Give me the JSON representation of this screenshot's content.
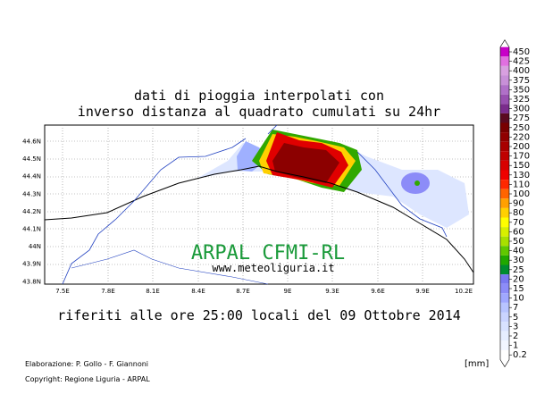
{
  "header": {
    "title_lines": [
      "dati di pioggia interpolati con",
      "inverso distanza al quadrato cumulati su 24hr"
    ]
  },
  "map": {
    "lat_labels": [
      "44.6N",
      "44.5N",
      "44.4N",
      "44.3N",
      "44.2N",
      "44.1N",
      "44N",
      "43.9N",
      "43.8N"
    ],
    "lon_labels": [
      "7.5E",
      "7.8E",
      "8.1E",
      "8.4E",
      "8.7E",
      "9E",
      "9.3E",
      "9.6E",
      "9.9E",
      "10.2E"
    ],
    "watermark": "ARPAL CFMI-RL",
    "website": "www.meteoliguria.it"
  },
  "subtitle": "riferiti alle ore 25:00 locali del 09 Ottobre 2014",
  "credits": [
    "Elaborazione: P. Gollo - F. Giannoni",
    "Copyright: Regione Liguria - ARPAL"
  ],
  "colorbar": {
    "unit": "[mm]",
    "levels": [
      {
        "label": 450,
        "color": "#c800c8"
      },
      {
        "label": 425,
        "color": "#e070e0"
      },
      {
        "label": 400,
        "color": "#d8a0e0"
      },
      {
        "label": 375,
        "color": "#c890d8"
      },
      {
        "label": 350,
        "color": "#b070c8"
      },
      {
        "label": 325,
        "color": "#9850b0"
      },
      {
        "label": 300,
        "color": "#7a2c8c"
      },
      {
        "label": 275,
        "color": "#5a0a20"
      },
      {
        "label": 250,
        "color": "#780000"
      },
      {
        "label": 220,
        "color": "#900000"
      },
      {
        "label": 200,
        "color": "#a80000"
      },
      {
        "label": 170,
        "color": "#c00000"
      },
      {
        "label": 150,
        "color": "#d80000"
      },
      {
        "label": 130,
        "color": "#f00000"
      },
      {
        "label": 110,
        "color": "#ff2800"
      },
      {
        "label": 100,
        "color": "#ff6400"
      },
      {
        "label": 90,
        "color": "#ffa000"
      },
      {
        "label": 80,
        "color": "#ffd000"
      },
      {
        "label": 70,
        "color": "#ffff00"
      },
      {
        "label": 60,
        "color": "#d8f000"
      },
      {
        "label": 50,
        "color": "#a8e000"
      },
      {
        "label": 40,
        "color": "#60c800"
      },
      {
        "label": 30,
        "color": "#20a800"
      },
      {
        "label": 25,
        "color": "#008c30"
      },
      {
        "label": 20,
        "color": "#7878f0"
      },
      {
        "label": 15,
        "color": "#8c8cf8"
      },
      {
        "label": 10,
        "color": "#a0a8ff"
      },
      {
        "label": 7,
        "color": "#b8c4ff"
      },
      {
        "label": 5,
        "color": "#cad4ff"
      },
      {
        "label": 3,
        "color": "#d8e2ff"
      },
      {
        "label": 2,
        "color": "#e6eeff"
      },
      {
        "label": 1,
        "color": "#f2f6ff"
      },
      {
        "label": 0.2,
        "color": "#ffffff"
      }
    ]
  }
}
